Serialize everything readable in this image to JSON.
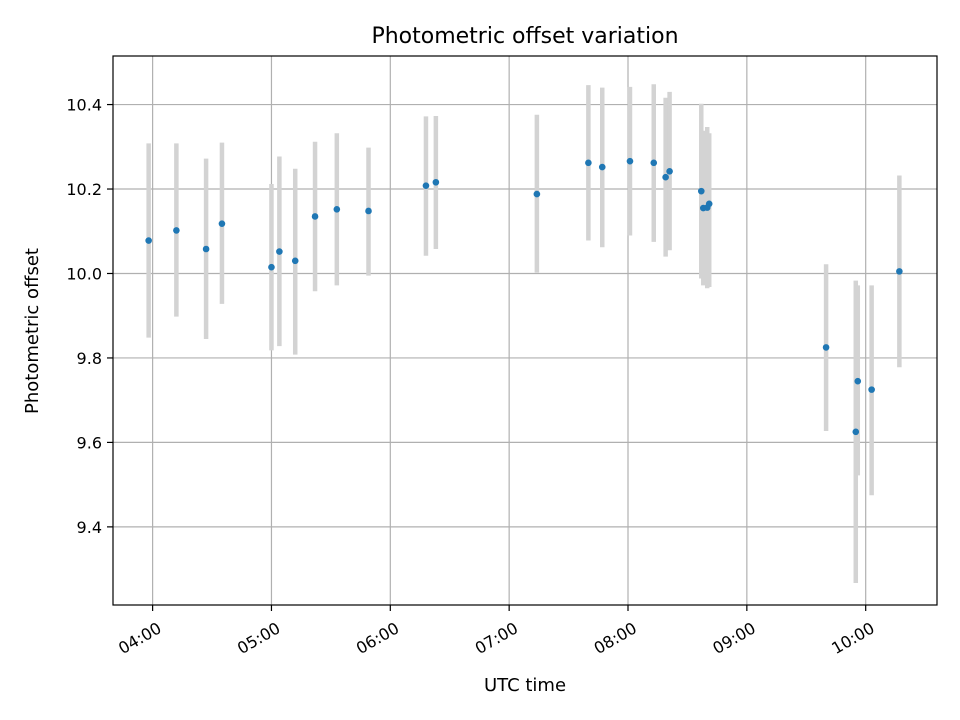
{
  "chart_data": {
    "type": "scatter",
    "title": "Photometric offset variation",
    "xlabel": "UTC time",
    "ylabel": "Photometric offset",
    "x_ticks": [
      "04:00",
      "05:00",
      "06:00",
      "07:00",
      "08:00",
      "09:00",
      "10:00"
    ],
    "xlim": [
      "03:40",
      "10:36"
    ],
    "y_ticks": [
      9.4,
      9.6,
      9.8,
      10.0,
      10.2,
      10.4
    ],
    "ylim": [
      9.215,
      10.515
    ],
    "grid": true,
    "series": [
      {
        "marker_color": "#1f77b4",
        "errorbar_color": "#d3d3d3",
        "points": [
          {
            "x": "03:58",
            "y": 10.078,
            "ylow": 9.848,
            "yhigh": 10.308
          },
          {
            "x": "04:12",
            "y": 10.102,
            "ylow": 9.898,
            "yhigh": 10.308
          },
          {
            "x": "04:27",
            "y": 10.058,
            "ylow": 9.845,
            "yhigh": 10.272
          },
          {
            "x": "04:35",
            "y": 10.118,
            "ylow": 9.928,
            "yhigh": 10.31
          },
          {
            "x": "05:00",
            "y": 10.015,
            "ylow": 9.818,
            "yhigh": 10.212
          },
          {
            "x": "05:04",
            "y": 10.052,
            "ylow": 9.828,
            "yhigh": 10.277
          },
          {
            "x": "05:12",
            "y": 10.03,
            "ylow": 9.808,
            "yhigh": 10.248
          },
          {
            "x": "05:22",
            "y": 10.135,
            "ylow": 9.958,
            "yhigh": 10.312
          },
          {
            "x": "05:33",
            "y": 10.152,
            "ylow": 9.972,
            "yhigh": 10.332
          },
          {
            "x": "05:49",
            "y": 10.148,
            "ylow": 9.995,
            "yhigh": 10.298
          },
          {
            "x": "06:18",
            "y": 10.208,
            "ylow": 10.042,
            "yhigh": 10.372
          },
          {
            "x": "06:23",
            "y": 10.216,
            "ylow": 10.058,
            "yhigh": 10.373
          },
          {
            "x": "07:14",
            "y": 10.188,
            "ylow": 10.002,
            "yhigh": 10.376
          },
          {
            "x": "07:40",
            "y": 10.262,
            "ylow": 10.078,
            "yhigh": 10.446
          },
          {
            "x": "07:47",
            "y": 10.252,
            "ylow": 10.062,
            "yhigh": 10.44
          },
          {
            "x": "08:01",
            "y": 10.266,
            "ylow": 10.09,
            "yhigh": 10.442
          },
          {
            "x": "08:13",
            "y": 10.262,
            "ylow": 10.075,
            "yhigh": 10.448
          },
          {
            "x": "08:19",
            "y": 10.228,
            "ylow": 10.04,
            "yhigh": 10.416
          },
          {
            "x": "08:21",
            "y": 10.242,
            "ylow": 10.055,
            "yhigh": 10.43
          },
          {
            "x": "08:37",
            "y": 10.195,
            "ylow": 9.988,
            "yhigh": 10.402
          },
          {
            "x": "08:38",
            "y": 10.155,
            "ylow": 9.972,
            "yhigh": 10.338
          },
          {
            "x": "08:40",
            "y": 10.156,
            "ylow": 9.965,
            "yhigh": 10.347
          },
          {
            "x": "08:41",
            "y": 10.165,
            "ylow": 9.968,
            "yhigh": 10.332
          },
          {
            "x": "09:40",
            "y": 9.825,
            "ylow": 9.627,
            "yhigh": 10.022
          },
          {
            "x": "09:55",
            "y": 9.625,
            "ylow": 9.267,
            "yhigh": 9.983
          },
          {
            "x": "09:56",
            "y": 9.745,
            "ylow": 9.522,
            "yhigh": 9.972
          },
          {
            "x": "10:03",
            "y": 9.725,
            "ylow": 9.475,
            "yhigh": 9.972
          },
          {
            "x": "10:17",
            "y": 10.005,
            "ylow": 9.778,
            "yhigh": 10.232
          }
        ]
      }
    ]
  }
}
